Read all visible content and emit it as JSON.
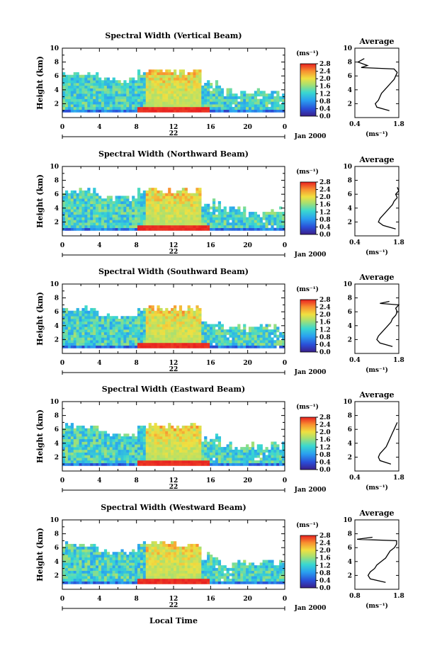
{
  "figure": {
    "x_axis_label": "Local Time",
    "date_label": "Jan 2000",
    "day_label": "22",
    "avg_title": "Average",
    "colorbar_unit": "(ms⁻¹)",
    "avg_xlabel": "(ms⁻¹)"
  },
  "chart_data": [
    {
      "type": "heatmap",
      "title": "Spectral Width (Vertical Beam)",
      "ylabel": "Height (km)",
      "xlim": [
        0,
        24
      ],
      "ylim": [
        0,
        10
      ],
      "x_ticks": [
        "0",
        "4",
        "8",
        "12",
        "16",
        "20",
        "0"
      ],
      "y_ticks": [
        "2",
        "4",
        "6",
        "8",
        "10"
      ],
      "colorbar_ticks": [
        "0.0",
        "0.4",
        "0.8",
        "1.2",
        "1.6",
        "2.0",
        "2.4",
        "2.8"
      ],
      "colorbar_range": [
        0.0,
        2.8
      ],
      "profile": {
        "title": "Average",
        "x_ticks": [
          "0.4",
          "1.8"
        ],
        "xlim": [
          0.4,
          1.8
        ],
        "y_ticks": [
          "2",
          "4",
          "6",
          "8",
          "10"
        ],
        "height_km": [
          1,
          1.5,
          2,
          2.5,
          3,
          3.5,
          4,
          4.5,
          5,
          5.5,
          6,
          6.5,
          7,
          7.2,
          7.5,
          8,
          8.5
        ],
        "value": [
          1.5,
          1.1,
          1.05,
          1.15,
          1.2,
          1.25,
          1.35,
          1.45,
          1.55,
          1.65,
          1.7,
          1.75,
          1.65,
          0.6,
          0.8,
          0.5,
          0.7
        ]
      }
    },
    {
      "type": "heatmap",
      "title": "Spectral Width (Northward Beam)",
      "ylabel": "Height (km)",
      "xlim": [
        0,
        24
      ],
      "ylim": [
        0,
        10
      ],
      "x_ticks": [
        "0",
        "4",
        "8",
        "12",
        "16",
        "20",
        "0"
      ],
      "y_ticks": [
        "2",
        "4",
        "6",
        "8",
        "10"
      ],
      "colorbar_ticks": [
        "0.0",
        "0.4",
        "0.8",
        "1.2",
        "1.6",
        "2.0",
        "2.4",
        "2.8"
      ],
      "colorbar_range": [
        0.0,
        2.8
      ],
      "profile": {
        "title": "Average",
        "x_ticks": [
          "0.4",
          "1.8"
        ],
        "xlim": [
          0.4,
          1.8
        ],
        "y_ticks": [
          "2",
          "4",
          "6",
          "8",
          "10"
        ],
        "height_km": [
          1,
          1.5,
          2,
          2.5,
          3,
          3.5,
          4,
          4.5,
          5,
          5.5,
          6,
          6.5,
          7
        ],
        "value": [
          1.7,
          1.3,
          1.15,
          1.2,
          1.3,
          1.4,
          1.5,
          1.6,
          1.65,
          1.75,
          1.7,
          1.8,
          1.75
        ]
      }
    },
    {
      "type": "heatmap",
      "title": "Spectral Width (Southward Beam)",
      "ylabel": "Height (km)",
      "xlim": [
        0,
        24
      ],
      "ylim": [
        0,
        10
      ],
      "x_ticks": [
        "0",
        "4",
        "8",
        "12",
        "16",
        "20",
        "0"
      ],
      "y_ticks": [
        "2",
        "4",
        "6",
        "8",
        "10"
      ],
      "colorbar_ticks": [
        "0.0",
        "0.4",
        "0.8",
        "1.2",
        "1.6",
        "2.0",
        "2.4",
        "2.8"
      ],
      "colorbar_range": [
        0.0,
        2.8
      ],
      "profile": {
        "title": "Average",
        "x_ticks": [
          "0.4",
          "1.8"
        ],
        "xlim": [
          0.4,
          1.8
        ],
        "y_ticks": [
          "2",
          "4",
          "6",
          "8",
          "10"
        ],
        "height_km": [
          1,
          1.5,
          2,
          2.5,
          3,
          3.5,
          4,
          4.5,
          5,
          5.5,
          6,
          6.5,
          7,
          7.2,
          7.5
        ],
        "value": [
          1.6,
          1.2,
          1.1,
          1.15,
          1.25,
          1.35,
          1.45,
          1.55,
          1.6,
          1.7,
          1.75,
          1.7,
          1.8,
          1.2,
          1.5
        ]
      }
    },
    {
      "type": "heatmap",
      "title": "Spectral Width (Eastward Beam)",
      "ylabel": "Height (km)",
      "xlim": [
        0,
        24
      ],
      "ylim": [
        0,
        10
      ],
      "x_ticks": [
        "0",
        "4",
        "8",
        "12",
        "16",
        "20",
        "0"
      ],
      "y_ticks": [
        "2",
        "4",
        "6",
        "8",
        "10"
      ],
      "colorbar_ticks": [
        "0.0",
        "0.4",
        "0.8",
        "1.2",
        "1.6",
        "2.0",
        "2.4",
        "2.8"
      ],
      "colorbar_range": [
        0.0,
        2.8
      ],
      "profile": {
        "title": "Average",
        "x_ticks": [
          "0.4",
          "1.8"
        ],
        "xlim": [
          0.4,
          1.8
        ],
        "y_ticks": [
          "2",
          "4",
          "6",
          "8",
          "10"
        ],
        "height_km": [
          1,
          1.5,
          2,
          2.5,
          3,
          3.5,
          4,
          4.5,
          5,
          5.5,
          6,
          6.5,
          7
        ],
        "value": [
          1.55,
          1.2,
          1.15,
          1.2,
          1.3,
          1.4,
          1.45,
          1.5,
          1.55,
          1.6,
          1.65,
          1.7,
          1.75
        ]
      }
    },
    {
      "type": "heatmap",
      "title": "Spectral Width (Westward Beam)",
      "ylabel": "Height (km)",
      "xlim": [
        0,
        24
      ],
      "ylim": [
        0,
        10
      ],
      "x_ticks": [
        "0",
        "4",
        "8",
        "12",
        "16",
        "20",
        "0"
      ],
      "y_ticks": [
        "2",
        "4",
        "6",
        "8",
        "10"
      ],
      "colorbar_ticks": [
        "0.0",
        "0.4",
        "0.8",
        "1.2",
        "1.6",
        "2.0",
        "2.4",
        "2.8"
      ],
      "colorbar_range": [
        0.0,
        2.8
      ],
      "profile": {
        "title": "Average",
        "x_ticks": [
          "0.8",
          "1.8"
        ],
        "xlim": [
          0.8,
          1.8
        ],
        "y_ticks": [
          "2",
          "4",
          "6",
          "8",
          "10"
        ],
        "height_km": [
          1,
          1.5,
          2,
          2.5,
          3,
          3.5,
          4,
          4.5,
          5,
          5.5,
          6,
          6.5,
          7,
          7.2,
          7.5
        ],
        "value": [
          1.5,
          1.15,
          1.1,
          1.15,
          1.25,
          1.3,
          1.4,
          1.5,
          1.55,
          1.6,
          1.7,
          1.75,
          1.75,
          0.85,
          1.2
        ]
      }
    }
  ]
}
